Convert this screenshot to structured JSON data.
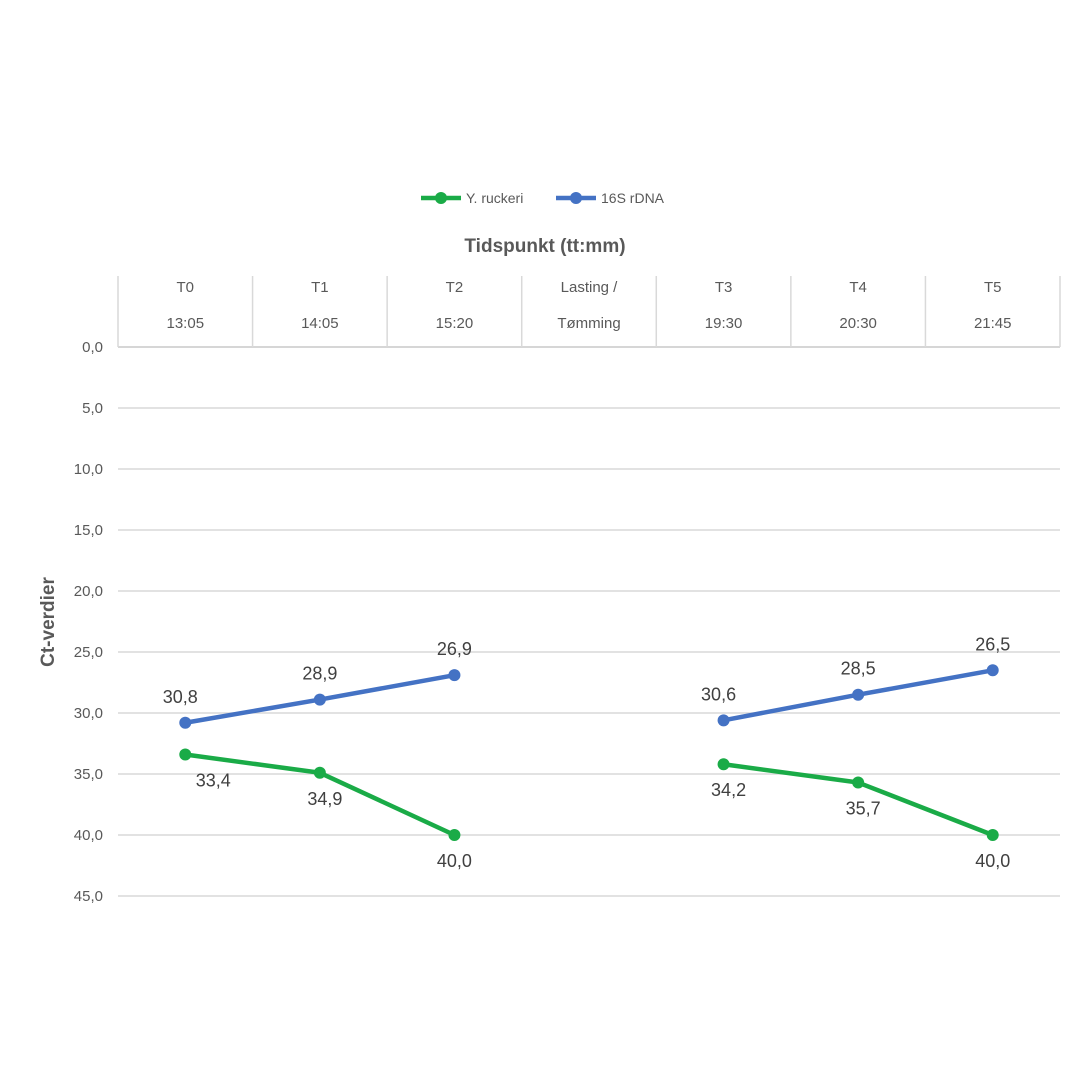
{
  "chart_data": {
    "type": "line",
    "x_axis_title": "Tidspunkt (tt:mm)",
    "ylabel": "Ct-verdier",
    "ylim": [
      0,
      45
    ],
    "y_reversed": true,
    "y_ticks": [
      "0,0",
      "5,0",
      "10,0",
      "15,0",
      "20,0",
      "25,0",
      "30,0",
      "35,0",
      "40,0",
      "45,0"
    ],
    "x_axis_position": "top",
    "categories": [
      {
        "line1": "T0",
        "line2": "13:05"
      },
      {
        "line1": "T1",
        "line2": "14:05"
      },
      {
        "line1": "T2",
        "line2": "15:20"
      },
      {
        "line1": "Lasting /",
        "line2": "Tømming"
      },
      {
        "line1": "T3",
        "line2": "19:30"
      },
      {
        "line1": "T4",
        "line2": "20:30"
      },
      {
        "line1": "T5",
        "line2": "21:45"
      }
    ],
    "legend_position": "top",
    "grid": true,
    "series": [
      {
        "name": "Y. ruckeri",
        "color": "#1aab47",
        "values": [
          33.4,
          34.9,
          40.0,
          null,
          34.2,
          35.7,
          40.0
        ],
        "labels": [
          "33,4",
          "34,9",
          "40,0",
          null,
          "34,2",
          "35,7",
          "40,0"
        ]
      },
      {
        "name": "16S rDNA",
        "color": "#4472c4",
        "values": [
          30.8,
          28.9,
          26.9,
          null,
          30.6,
          28.5,
          26.5
        ],
        "labels": [
          "30,8",
          "28,9",
          "26,9",
          null,
          "30,6",
          "28,5",
          "26,5"
        ]
      }
    ]
  }
}
